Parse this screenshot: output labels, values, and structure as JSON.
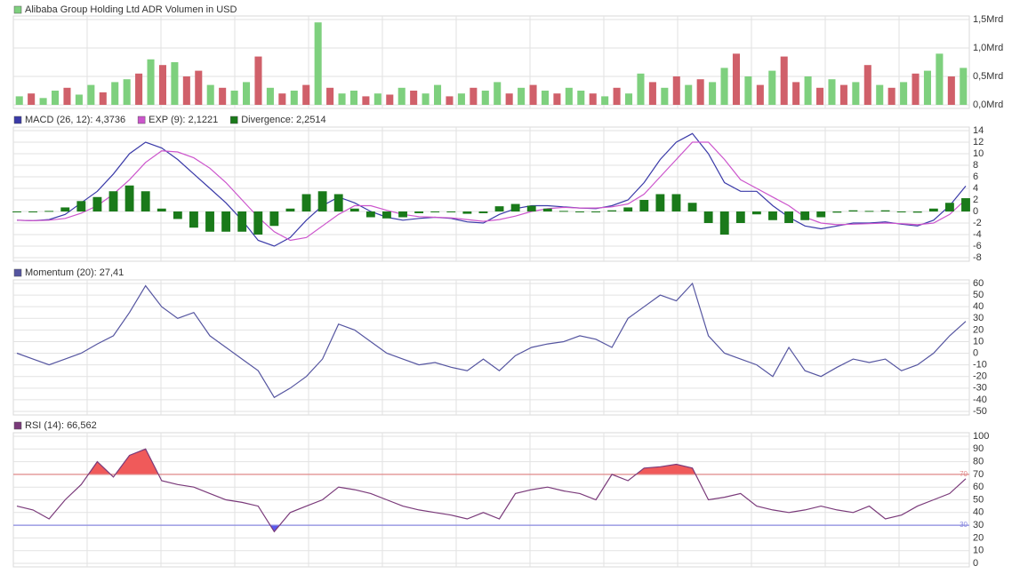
{
  "chart_data": [
    {
      "type": "bar",
      "title": "Alibaba Group Holding Ltd ADR Volumen in USD",
      "color": "#7ed07e",
      "values": [
        0.15,
        0.2,
        0.12,
        0.25,
        0.3,
        0.18,
        0.35,
        0.22,
        0.4,
        0.45,
        0.55,
        0.8,
        0.7,
        0.75,
        0.5,
        0.6,
        0.35,
        0.3,
        0.25,
        0.4,
        0.85,
        0.3,
        0.2,
        0.25,
        0.35,
        1.45,
        0.3,
        0.2,
        0.25,
        0.15,
        0.2,
        0.18,
        0.3,
        0.25,
        0.2,
        0.35,
        0.15,
        0.2,
        0.3,
        0.25,
        0.4,
        0.2,
        0.3,
        0.35,
        0.25,
        0.2,
        0.3,
        0.25,
        0.2,
        0.15,
        0.3,
        0.2,
        0.55,
        0.4,
        0.3,
        0.5,
        0.35,
        0.45,
        0.4,
        0.65,
        0.9,
        0.5,
        0.35,
        0.6,
        0.85,
        0.4,
        0.5,
        0.3,
        0.45,
        0.35,
        0.4,
        0.7,
        0.35,
        0.3,
        0.4,
        0.55,
        0.6,
        0.9,
        0.5,
        0.65
      ],
      "colors": [
        "#7ed07e",
        "#d0606a",
        "#7ed07e",
        "#7ed07e",
        "#d0606a",
        "#7ed07e",
        "#7ed07e",
        "#d0606a",
        "#7ed07e",
        "#7ed07e",
        "#d0606a",
        "#7ed07e",
        "#d0606a",
        "#7ed07e",
        "#d0606a",
        "#d0606a",
        "#7ed07e",
        "#d0606a",
        "#7ed07e",
        "#7ed07e",
        "#d0606a",
        "#7ed07e",
        "#d0606a",
        "#7ed07e",
        "#d0606a",
        "#7ed07e",
        "#d0606a",
        "#7ed07e",
        "#7ed07e",
        "#d0606a",
        "#7ed07e",
        "#d0606a",
        "#7ed07e",
        "#d0606a",
        "#7ed07e",
        "#7ed07e",
        "#d0606a",
        "#7ed07e",
        "#d0606a",
        "#7ed07e",
        "#7ed07e",
        "#d0606a",
        "#7ed07e",
        "#d0606a",
        "#7ed07e",
        "#d0606a",
        "#7ed07e",
        "#7ed07e",
        "#d0606a",
        "#7ed07e",
        "#d0606a",
        "#7ed07e",
        "#7ed07e",
        "#d0606a",
        "#7ed07e",
        "#d0606a",
        "#7ed07e",
        "#d0606a",
        "#7ed07e",
        "#7ed07e",
        "#d0606a",
        "#7ed07e",
        "#d0606a",
        "#7ed07e",
        "#d0606a",
        "#d0606a",
        "#7ed07e",
        "#d0606a",
        "#7ed07e",
        "#d0606a",
        "#7ed07e",
        "#d0606a",
        "#7ed07e",
        "#d0606a",
        "#7ed07e",
        "#d0606a",
        "#7ed07e",
        "#7ed07e",
        "#d0606a",
        "#7ed07e"
      ],
      "ylim": [
        0,
        1.5
      ],
      "yticks": [
        {
          "value": 0,
          "label": "0,0Mrd"
        },
        {
          "value": 0.5,
          "label": "0,5Mrd"
        },
        {
          "value": 1,
          "label": "1,0Mrd"
        },
        {
          "value": 1.5,
          "label": "1,5Mrd"
        }
      ]
    },
    {
      "type": "line",
      "ylim": [
        -8,
        14
      ],
      "yticks": [
        -8,
        -6,
        -4,
        -2,
        0,
        2,
        4,
        6,
        8,
        10,
        12,
        14
      ],
      "series": [
        {
          "name": "MACD (26, 12): 4,3736",
          "color": "#3a3aa8",
          "values": [
            -1.5,
            -1.6,
            -1.4,
            -0.5,
            1.5,
            3.5,
            6.5,
            10,
            12,
            11,
            9,
            6.5,
            4,
            1.5,
            -1.5,
            -5,
            -6,
            -4.5,
            -1.5,
            1,
            2.5,
            1.5,
            0,
            -1,
            -1.5,
            -1.2,
            -1,
            -1.2,
            -1.8,
            -2,
            -0.5,
            0.5,
            1,
            1,
            0.8,
            0.6,
            0.5,
            1,
            2,
            5,
            9,
            12,
            13.5,
            10,
            5,
            3.5,
            3.5,
            1,
            -1,
            -2.5,
            -3,
            -2.5,
            -2,
            -2,
            -1.8,
            -2.2,
            -2.5,
            -1.5,
            1,
            4.4
          ]
        },
        {
          "name": "EXP (9): 2,1221",
          "color": "#cc55cc",
          "values": [
            -1.5,
            -1.6,
            -1.5,
            -1.2,
            -0.3,
            1,
            3,
            5.5,
            8.5,
            10.5,
            10.3,
            9.3,
            7.5,
            5,
            2,
            -1,
            -3.5,
            -5,
            -4.5,
            -2.5,
            -0.5,
            1,
            1,
            0.2,
            -0.5,
            -0.9,
            -1,
            -1.1,
            -1.4,
            -1.7,
            -1.4,
            -0.8,
            0,
            0.5,
            0.7,
            0.6,
            0.6,
            0.8,
            1.3,
            3,
            6,
            9,
            12,
            12,
            9,
            5.5,
            4,
            2.5,
            1,
            -1,
            -2,
            -2.3,
            -2.2,
            -2.1,
            -2,
            -2.1,
            -2.3,
            -2,
            -0.5,
            2.1
          ]
        },
        {
          "name": "Divergence: 2,2514",
          "color": "#1a7a1a",
          "kind": "bar",
          "values": [
            0,
            0,
            0.1,
            0.7,
            1.8,
            2.5,
            3.5,
            4.5,
            3.5,
            0.5,
            -1.3,
            -2.8,
            -3.5,
            -3.5,
            -3.5,
            -4,
            -2.5,
            0.5,
            3,
            3.5,
            3,
            0.5,
            -1,
            -1.2,
            -1,
            -0.3,
            0,
            -0.1,
            -0.4,
            -0.3,
            0.9,
            1.3,
            1,
            0.5,
            0.1,
            0,
            -0.1,
            0.2,
            0.7,
            2,
            3,
            3,
            1.5,
            -2,
            -4,
            -2,
            -0.5,
            -1.5,
            -2,
            -1.5,
            -1,
            -0.2,
            0.2,
            0.1,
            0.2,
            -0.1,
            -0.2,
            0.5,
            1.5,
            2.3
          ]
        }
      ]
    },
    {
      "type": "line",
      "ylim": [
        -50,
        60
      ],
      "yticks": [
        -50,
        -40,
        -30,
        -20,
        -10,
        0,
        10,
        20,
        30,
        40,
        50,
        60
      ],
      "series": [
        {
          "name": "Momentum (20): 27,41",
          "color": "#5555a0",
          "values": [
            0,
            -5,
            -10,
            -5,
            0,
            8,
            15,
            35,
            58,
            40,
            30,
            35,
            15,
            5,
            -5,
            -15,
            -38,
            -30,
            -20,
            -5,
            25,
            20,
            10,
            0,
            -5,
            -10,
            -8,
            -12,
            -15,
            -5,
            -15,
            -2,
            5,
            8,
            10,
            15,
            12,
            5,
            30,
            40,
            50,
            45,
            60,
            15,
            0,
            -5,
            -10,
            -20,
            5,
            -15,
            -20,
            -12,
            -5,
            -8,
            -5,
            -15,
            -10,
            0,
            15,
            27.41
          ]
        }
      ]
    },
    {
      "type": "line",
      "ylim": [
        0,
        100
      ],
      "yticks": [
        0,
        10,
        20,
        30,
        40,
        50,
        60,
        70,
        80,
        90,
        100
      ],
      "hlines": [
        {
          "value": 70,
          "label": "70",
          "color": "#e08a8a",
          "fill": "#f05a5a",
          "side": "above"
        },
        {
          "value": 30,
          "label": "30",
          "color": "#8a8ae0",
          "fill": "#5a5af0",
          "side": "below"
        }
      ],
      "series": [
        {
          "name": "RSI (14): 66,562",
          "color": "#7a3a7a",
          "values": [
            45,
            42,
            35,
            50,
            62,
            80,
            68,
            85,
            90,
            65,
            62,
            60,
            55,
            50,
            48,
            45,
            25,
            40,
            45,
            50,
            60,
            58,
            55,
            50,
            45,
            42,
            40,
            38,
            35,
            40,
            35,
            55,
            58,
            60,
            57,
            55,
            50,
            70,
            65,
            75,
            76,
            78,
            75,
            50,
            52,
            55,
            45,
            42,
            40,
            42,
            45,
            42,
            40,
            45,
            35,
            38,
            45,
            50,
            55,
            66.562
          ]
        }
      ]
    }
  ]
}
